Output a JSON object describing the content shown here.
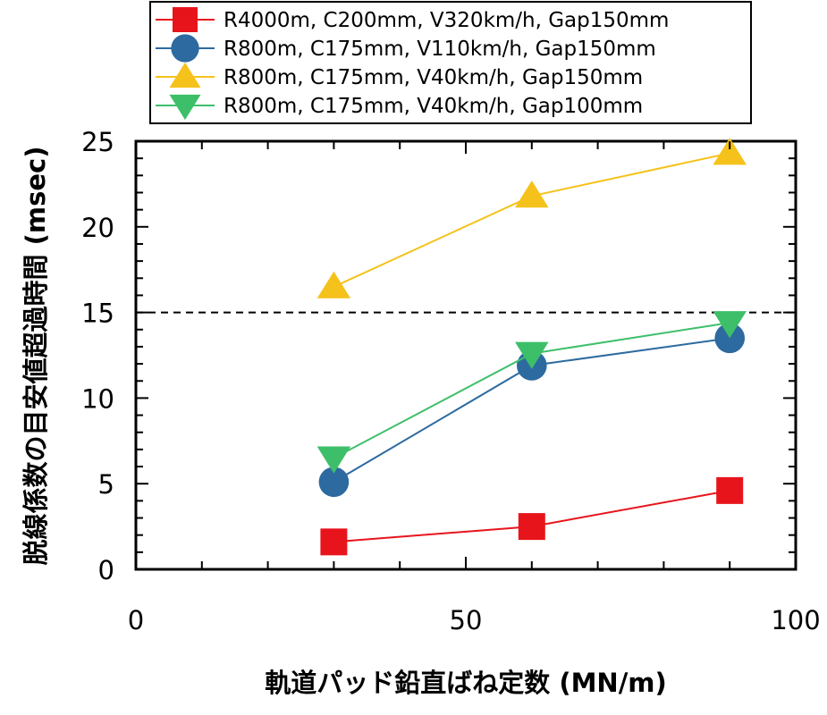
{
  "chart_data": {
    "type": "line",
    "xlabel": "軌道パッド鉛直ばね定数 (MN/m)",
    "ylabel": "脱線係数の目安値超過時間 (msec)",
    "xlim": [
      0,
      100
    ],
    "ylim": [
      0,
      25
    ],
    "xticks": [
      0,
      50,
      100
    ],
    "yticks": [
      0,
      5,
      10,
      15,
      20,
      25
    ],
    "grid": false,
    "legend_position": "top",
    "reference_line": {
      "y": 15,
      "style": "dashed",
      "color": "#000000"
    },
    "series": [
      {
        "name": "R4000m, C200mm, V320km/h, Gap150mm",
        "marker": "square",
        "color": "#e8141c",
        "x": [
          30,
          60,
          90
        ],
        "y": [
          1.6,
          2.5,
          4.6
        ]
      },
      {
        "name": "R800m, C175mm, V110km/h, Gap150mm",
        "marker": "circle",
        "color": "#2c6aa0",
        "x": [
          30,
          60,
          90
        ],
        "y": [
          5.1,
          11.9,
          13.5
        ]
      },
      {
        "name": "R800m, C175mm, V40km/h, Gap150mm",
        "marker": "triangle-up",
        "color": "#f5c21b",
        "x": [
          30,
          60,
          90
        ],
        "y": [
          16.5,
          21.8,
          24.3
        ]
      },
      {
        "name": "R800m, C175mm, V40km/h, Gap100mm",
        "marker": "triangle-down",
        "color": "#3dbf6a",
        "x": [
          30,
          60,
          90
        ],
        "y": [
          6.5,
          12.6,
          14.4
        ]
      }
    ]
  }
}
